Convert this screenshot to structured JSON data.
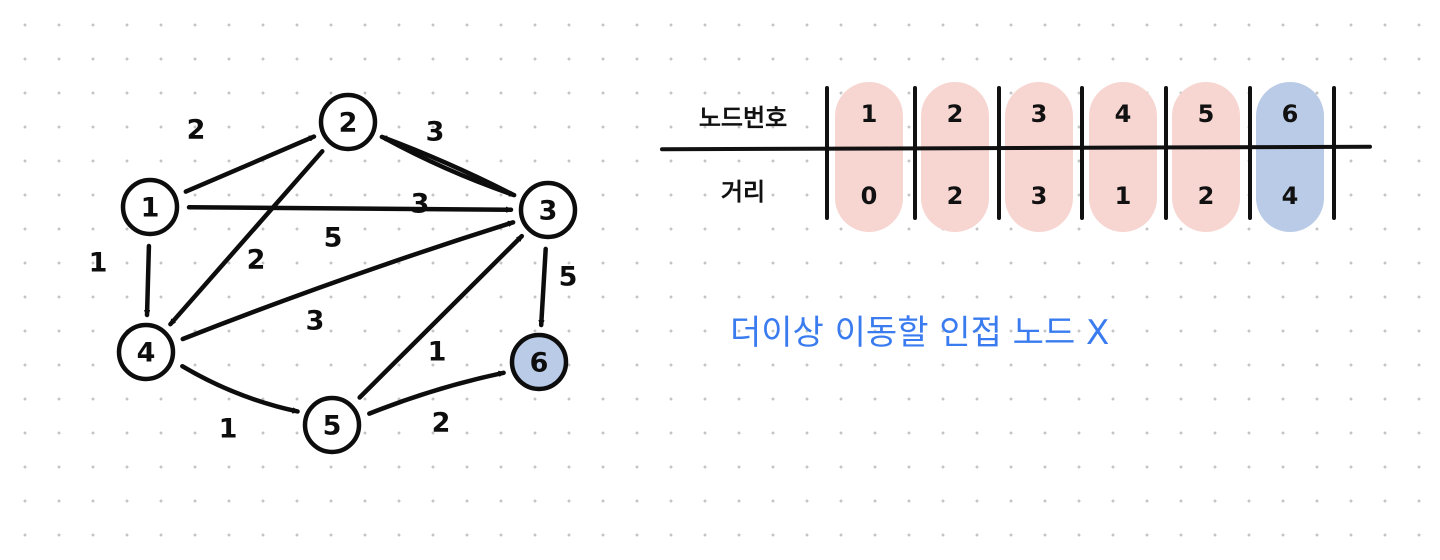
{
  "colors": {
    "ink": "#0d0d0d",
    "visited_highlight": "#f7d6d2",
    "current_highlight": "#b9cbe6",
    "note_blue": "#3a7cf0"
  },
  "graph": {
    "nodes": [
      {
        "id": "1",
        "label": "1"
      },
      {
        "id": "2",
        "label": "2"
      },
      {
        "id": "3",
        "label": "3"
      },
      {
        "id": "4",
        "label": "4"
      },
      {
        "id": "5",
        "label": "5"
      },
      {
        "id": "6",
        "label": "6",
        "highlighted": true
      }
    ],
    "edges": [
      {
        "from": "1",
        "to": "2",
        "weight": "2"
      },
      {
        "from": "1",
        "to": "3",
        "weight": "5"
      },
      {
        "from": "1",
        "to": "4",
        "weight": "1"
      },
      {
        "from": "2",
        "to": "3",
        "weight": "3"
      },
      {
        "from": "3",
        "to": "2",
        "weight": "3"
      },
      {
        "from": "2",
        "to": "4",
        "weight": "2"
      },
      {
        "from": "4",
        "to": "3",
        "weight": "3"
      },
      {
        "from": "4",
        "to": "5",
        "weight": "1"
      },
      {
        "from": "5",
        "to": "3",
        "weight": "1"
      },
      {
        "from": "5",
        "to": "6",
        "weight": "2"
      },
      {
        "from": "3",
        "to": "6",
        "weight": "5"
      }
    ]
  },
  "table": {
    "row_labels": {
      "node": "노드번호",
      "distance": "거리"
    },
    "columns": [
      {
        "node": "1",
        "distance": "0",
        "state": "visited"
      },
      {
        "node": "2",
        "distance": "2",
        "state": "visited"
      },
      {
        "node": "3",
        "distance": "3",
        "state": "visited"
      },
      {
        "node": "4",
        "distance": "1",
        "state": "visited"
      },
      {
        "node": "5",
        "distance": "2",
        "state": "visited"
      },
      {
        "node": "6",
        "distance": "4",
        "state": "current"
      }
    ]
  },
  "note": "더이상 이동할 인접 노드 X"
}
